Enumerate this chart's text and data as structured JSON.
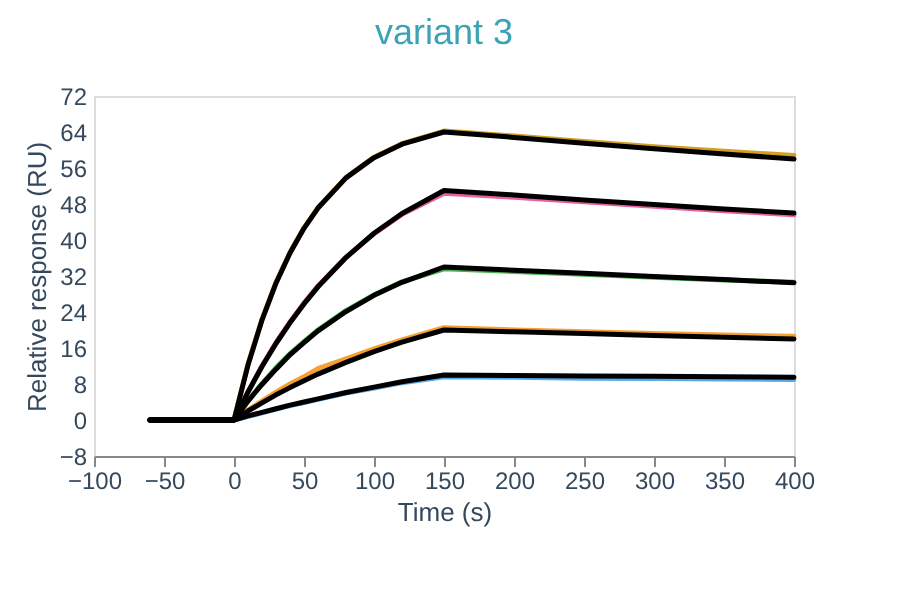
{
  "chart_data": {
    "type": "line",
    "title": "variant 3",
    "xlabel": "Time (s)",
    "ylabel": "Relative response (RU)",
    "x": [
      -60,
      0,
      10,
      20,
      30,
      40,
      50,
      60,
      80,
      100,
      120,
      150,
      200,
      250,
      300,
      350,
      400
    ],
    "series": [
      {
        "color": "#5aa9e6",
        "values": [
          0,
          0,
          0.8,
          1.6,
          2.4,
          3.2,
          3.9,
          4.6,
          6.0,
          7.1,
          8.3,
          9.6,
          9.5,
          9.3,
          9.2,
          9.1,
          9.0
        ]
      },
      {
        "color": "#f5a031",
        "values": [
          0,
          0,
          2.2,
          4.2,
          6.2,
          8.0,
          9.6,
          11.4,
          13.6,
          15.8,
          17.8,
          20.5,
          20.0,
          19.6,
          19.2,
          18.9,
          18.6
        ]
      },
      {
        "color": "#4caf50",
        "values": [
          0,
          0,
          4.3,
          8.1,
          11.6,
          14.7,
          17.4,
          20.0,
          24.3,
          27.8,
          30.7,
          33.6,
          33.0,
          32.4,
          31.7,
          31.1,
          30.6
        ]
      },
      {
        "color": "#e8609c",
        "values": [
          0,
          0,
          6.3,
          12.0,
          17.2,
          21.8,
          26.0,
          29.8,
          36.2,
          41.4,
          45.7,
          50.4,
          49.5,
          48.5,
          47.5,
          46.5,
          45.6
        ]
      },
      {
        "color": "#d4a020",
        "values": [
          0,
          0,
          12.4,
          22.4,
          30.6,
          37.2,
          42.7,
          47.2,
          53.9,
          58.4,
          61.4,
          64.2,
          63.1,
          61.9,
          60.7,
          59.7,
          58.8
        ]
      },
      {
        "color": "#000000",
        "values": [
          0,
          0,
          0.9,
          1.7,
          2.5,
          3.3,
          4.0,
          4.7,
          6.1,
          7.3,
          8.5,
          10.0,
          9.9,
          9.8,
          9.7,
          9.6,
          9.5
        ]
      },
      {
        "color": "#000000",
        "values": [
          0,
          0,
          2.0,
          3.8,
          5.6,
          7.2,
          8.7,
          10.2,
          12.8,
          15.2,
          17.3,
          20.0,
          19.6,
          19.2,
          18.8,
          18.4,
          18.0
        ]
      },
      {
        "color": "#000000",
        "values": [
          0,
          0,
          4.2,
          7.9,
          11.3,
          14.5,
          17.2,
          19.8,
          24.1,
          27.7,
          30.6,
          34.0,
          33.3,
          32.6,
          31.9,
          31.2,
          30.5
        ]
      },
      {
        "color": "#000000",
        "values": [
          0,
          0,
          6.2,
          11.9,
          17.0,
          21.6,
          25.8,
          29.6,
          36.1,
          41.5,
          45.9,
          51.0,
          50.0,
          48.9,
          47.9,
          46.9,
          46.0
        ]
      },
      {
        "color": "#000000",
        "values": [
          0,
          0,
          12.2,
          22.2,
          30.4,
          37.1,
          42.6,
          47.1,
          53.8,
          58.3,
          61.3,
          64.0,
          62.8,
          61.5,
          60.3,
          59.1,
          58.0
        ]
      }
    ],
    "xlim": [
      -100,
      400
    ],
    "xticks": [
      -100,
      -50,
      0,
      50,
      100,
      150,
      200,
      250,
      300,
      350,
      400
    ],
    "ylim": [
      -8,
      72
    ],
    "yticks": [
      -8,
      0,
      8,
      16,
      24,
      32,
      40,
      48,
      56,
      64,
      72
    ],
    "grid": false,
    "marker": "none",
    "line_style": "solid"
  }
}
